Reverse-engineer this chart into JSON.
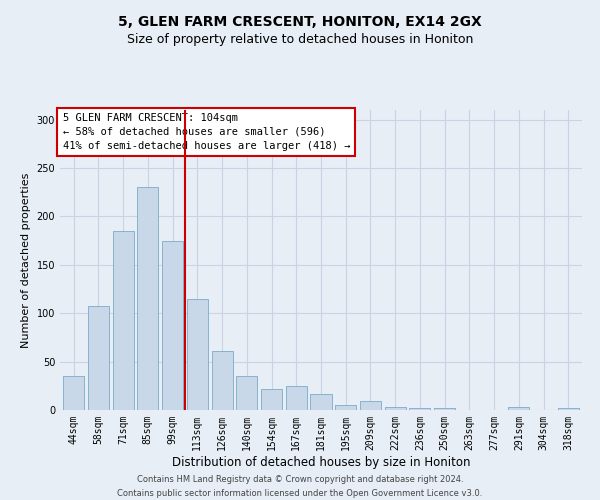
{
  "title1": "5, GLEN FARM CRESCENT, HONITON, EX14 2GX",
  "title2": "Size of property relative to detached houses in Honiton",
  "xlabel": "Distribution of detached houses by size in Honiton",
  "ylabel": "Number of detached properties",
  "categories": [
    "44sqm",
    "58sqm",
    "71sqm",
    "85sqm",
    "99sqm",
    "113sqm",
    "126sqm",
    "140sqm",
    "154sqm",
    "167sqm",
    "181sqm",
    "195sqm",
    "209sqm",
    "222sqm",
    "236sqm",
    "250sqm",
    "263sqm",
    "277sqm",
    "291sqm",
    "304sqm",
    "318sqm"
  ],
  "values": [
    35,
    107,
    185,
    230,
    175,
    115,
    61,
    35,
    22,
    25,
    17,
    5,
    9,
    3,
    2,
    2,
    0,
    0,
    3,
    0,
    2
  ],
  "bar_color": "#c8d8e8",
  "bar_edge_color": "#7aaac8",
  "vline_x_idx": 4,
  "vline_color": "#cc0000",
  "annotation_text": "5 GLEN FARM CRESCENT: 104sqm\n← 58% of detached houses are smaller (596)\n41% of semi-detached houses are larger (418) →",
  "annotation_box_color": "#ffffff",
  "annotation_box_edge_color": "#cc0000",
  "grid_color": "#c8d4e4",
  "background_color": "#e8eef6",
  "ylim": [
    0,
    310
  ],
  "yticks": [
    0,
    50,
    100,
    150,
    200,
    250,
    300
  ],
  "footnote": "Contains HM Land Registry data © Crown copyright and database right 2024.\nContains public sector information licensed under the Open Government Licence v3.0.",
  "title1_fontsize": 10,
  "title2_fontsize": 9,
  "xlabel_fontsize": 8.5,
  "ylabel_fontsize": 8,
  "tick_fontsize": 7,
  "annot_fontsize": 7.5,
  "footnote_fontsize": 6
}
